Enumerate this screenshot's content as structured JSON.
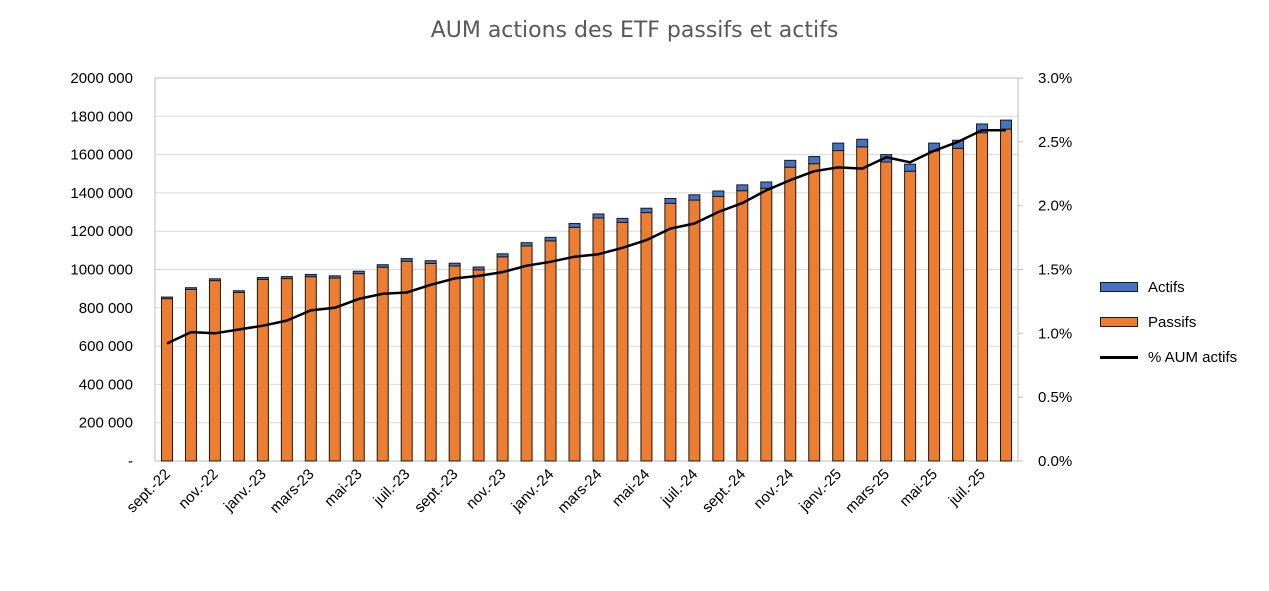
{
  "chart_data": {
    "type": "bar",
    "title": "AUM actions des ETF passifs et actifs",
    "xlabel": "",
    "ylabel": "",
    "ylim": [
      0,
      2000000
    ],
    "y2lim": [
      0,
      3.0
    ],
    "y_ticks": [
      "-",
      "200 000",
      "400 000",
      "600 000",
      "800 000",
      "1000 000",
      "1200 000",
      "1400 000",
      "1600 000",
      "1800 000",
      "2000 000"
    ],
    "y2_ticks": [
      "0.0%",
      "0.5%",
      "1.0%",
      "1.5%",
      "2.0%",
      "2.5%",
      "3.0%"
    ],
    "x_tick_labels": [
      "sept.-22",
      "nov.-22",
      "janv.-23",
      "mars-23",
      "mai-23",
      "juil.-23",
      "sept.-23",
      "nov.-23",
      "janv.-24",
      "mars-24",
      "mai-24",
      "juil.-24",
      "sept.-24",
      "nov.-24",
      "janv.-25",
      "mars-25",
      "mai-25",
      "juil.-25"
    ],
    "stacked": true,
    "grid": true,
    "legend_position": "right",
    "categories": [
      "sept.-22",
      "oct.-22",
      "nov.-22",
      "déc.-22",
      "janv.-23",
      "févr.-23",
      "mars-23",
      "avr.-23",
      "mai-23",
      "juin-23",
      "juil.-23",
      "août-23",
      "sept.-23",
      "oct.-23",
      "nov.-23",
      "déc.-23",
      "janv.-24",
      "févr.-24",
      "mars-24",
      "avr.-24",
      "mai-24",
      "juin-24",
      "juil.-24",
      "août-24",
      "sept.-24",
      "oct.-24",
      "nov.-24",
      "déc.-24",
      "janv.-25",
      "févr.-25",
      "mars-25",
      "avr.-25",
      "mai-25",
      "juin-25",
      "juil.-25",
      "août-25"
    ],
    "series": [
      {
        "name": "Actifs",
        "kind": "bar",
        "axis": "left",
        "color": "#4472C4",
        "values": [
          8000,
          9000,
          9500,
          9000,
          10000,
          10500,
          11500,
          11500,
          12500,
          13000,
          13800,
          14000,
          14600,
          14600,
          15700,
          17000,
          18500,
          20000,
          21000,
          21000,
          22800,
          25500,
          27500,
          28500,
          30500,
          33000,
          36000,
          37500,
          39000,
          39500,
          38500,
          37000,
          41000,
          42500,
          46000,
          47000
        ]
      },
      {
        "name": "Passifs",
        "kind": "bar",
        "axis": "left",
        "color": "#ED7D31",
        "values": [
          848000,
          896000,
          942000,
          880000,
          948000,
          952500,
          962500,
          955500,
          978500,
          1012000,
          1043200,
          1032000,
          1018400,
          998400,
          1066300,
          1123000,
          1149500,
          1220000,
          1269000,
          1246000,
          1297200,
          1345500,
          1362500,
          1381500,
          1411500,
          1424000,
          1534000,
          1552500,
          1621000,
          1640500,
          1561500,
          1513000,
          1619000,
          1632500,
          1714000,
          1733000
        ]
      },
      {
        "name": "% AUM actifs",
        "kind": "line",
        "axis": "right",
        "unit": "%",
        "color": "#000000",
        "values": [
          0.92,
          1.01,
          1.0,
          1.03,
          1.06,
          1.1,
          1.18,
          1.2,
          1.27,
          1.31,
          1.32,
          1.38,
          1.43,
          1.45,
          1.48,
          1.53,
          1.56,
          1.6,
          1.62,
          1.67,
          1.73,
          1.82,
          1.86,
          1.95,
          2.02,
          2.12,
          2.2,
          2.27,
          2.3,
          2.29,
          2.38,
          2.34,
          2.43,
          2.5,
          2.59,
          2.59
        ]
      }
    ]
  }
}
